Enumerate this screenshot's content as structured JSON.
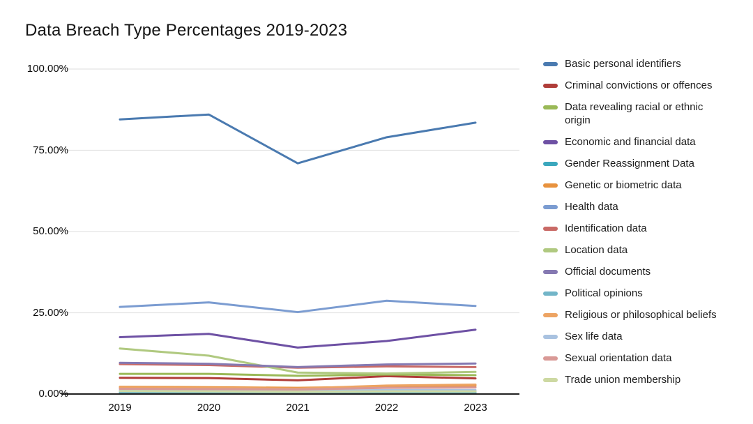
{
  "title": "Data Breach Type Percentages 2019-2023",
  "chart_data": {
    "type": "line",
    "x": [
      2019,
      2020,
      2021,
      2022,
      2023
    ],
    "x_labels": [
      "2019",
      "2020",
      "2021",
      "2022",
      "2023"
    ],
    "y_ticks": [
      {
        "label": "0.00%",
        "value": 0
      },
      {
        "label": "25.00%",
        "value": 25
      },
      {
        "label": "50.00%",
        "value": 50
      },
      {
        "label": "75.00%",
        "value": 75
      },
      {
        "label": "100.00%",
        "value": 100
      }
    ],
    "ylim": [
      0,
      100
    ],
    "xlabel": "",
    "ylabel": "",
    "grid": true,
    "legend_position": "right",
    "series": [
      {
        "name": "Basic personal identifiers",
        "color": "#4a7ab0",
        "values": [
          84.5,
          86.0,
          71.0,
          79.0,
          83.5
        ]
      },
      {
        "name": "Criminal convictions or offences",
        "color": "#b03d39",
        "values": [
          5.0,
          4.9,
          4.2,
          5.5,
          4.8
        ]
      },
      {
        "name": "Data revealing racial or ethnic origin",
        "color": "#9ab957",
        "values": [
          6.2,
          6.2,
          5.6,
          6.0,
          5.8
        ]
      },
      {
        "name": "Economic and financial data",
        "color": "#6e51a4",
        "values": [
          17.5,
          18.5,
          14.3,
          16.3,
          19.8
        ]
      },
      {
        "name": "Gender Reassignment Data",
        "color": "#3aa7bd",
        "values": [
          0.2,
          0.2,
          0.1,
          0.2,
          0.2
        ]
      },
      {
        "name": "Genetic or biometric data",
        "color": "#e8923e",
        "values": [
          2.2,
          2.1,
          1.9,
          2.3,
          2.5
        ]
      },
      {
        "name": "Health data",
        "color": "#7b9cd1",
        "values": [
          26.8,
          28.2,
          25.2,
          28.7,
          27.1
        ]
      },
      {
        "name": "Identification data",
        "color": "#c96a66",
        "values": [
          9.2,
          8.9,
          8.1,
          8.5,
          8.3
        ]
      },
      {
        "name": "Location data",
        "color": "#b0c980",
        "values": [
          14.0,
          11.8,
          6.6,
          6.3,
          6.8
        ]
      },
      {
        "name": "Official documents",
        "color": "#8579b2",
        "values": [
          9.6,
          9.3,
          8.3,
          9.1,
          9.4
        ]
      },
      {
        "name": "Political opinions",
        "color": "#72b5c8",
        "values": [
          0.6,
          0.6,
          0.5,
          0.6,
          0.6
        ]
      },
      {
        "name": "Religious or philosophical beliefs",
        "color": "#eda463",
        "values": [
          2.0,
          1.9,
          1.7,
          2.6,
          2.9
        ]
      },
      {
        "name": "Sex life data",
        "color": "#a9c2e0",
        "values": [
          1.2,
          1.1,
          1.0,
          1.2,
          1.2
        ]
      },
      {
        "name": "Sexual orientation data",
        "color": "#d99996",
        "values": [
          1.6,
          1.5,
          1.4,
          1.9,
          2.0
        ]
      },
      {
        "name": "Trade union membership",
        "color": "#cdd9a2",
        "values": [
          0.9,
          0.8,
          0.7,
          0.8,
          0.8
        ]
      }
    ]
  },
  "style": {
    "grid_color": "#e3e3e3",
    "axis_color": "#212121",
    "tick_color": "#0a0a0a",
    "background": "#ffffff"
  }
}
